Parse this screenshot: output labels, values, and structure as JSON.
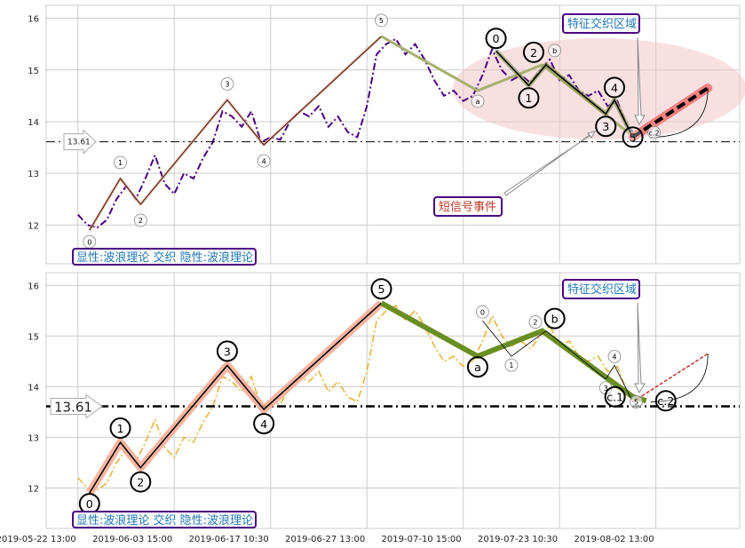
{
  "chart_data": [
    {
      "type": "line",
      "panel": "top",
      "ylim": [
        11.25,
        16.25
      ],
      "xlim": [
        -0.33,
        6.87
      ],
      "yticks": [
        12,
        13,
        14,
        15,
        16
      ],
      "level_line": 13.61,
      "level_label": "13.61",
      "price_color": "#4b0082",
      "legend_text": "显性:波浪理论 交织 隐性:波浪理论",
      "zone_label": "特征交织区域",
      "signal_label": "短信号事件",
      "wave1": {
        "labels": [
          "0",
          "1",
          "2",
          "3",
          "4",
          "5"
        ],
        "x": [
          0.12,
          0.44,
          0.65,
          1.55,
          1.93,
          3.15
        ],
        "y": [
          11.9,
          12.9,
          12.4,
          14.42,
          13.55,
          15.65
        ]
      },
      "wave_abc": {
        "labels": [
          "5",
          "a",
          "b",
          "c.2"
        ],
        "x": [
          3.15,
          4.15,
          4.82,
          5.76
        ],
        "y": [
          15.65,
          14.6,
          15.1,
          13.72
        ]
      },
      "wave2": {
        "labels": [
          "0",
          "1",
          "2",
          "3",
          "4",
          "5"
        ],
        "x": [
          4.34,
          4.68,
          4.86,
          5.48,
          5.57,
          5.76
        ],
        "y": [
          15.37,
          14.7,
          15.1,
          14.15,
          14.42,
          13.7
        ]
      },
      "forecast": {
        "x": [
          5.76,
          6.54
        ],
        "y": [
          13.7,
          14.65
        ]
      }
    },
    {
      "type": "line",
      "panel": "bottom",
      "ylim": [
        11.2,
        16.25
      ],
      "xlim": [
        -0.33,
        6.87
      ],
      "yticks": [
        12,
        13,
        14,
        15,
        16
      ],
      "level_line": 13.61,
      "level_label": "13.61",
      "price_color": "#e8b030",
      "legend_text": "显性:波浪理论 交织 隐性:波浪理论",
      "zone_label": "特征交织区域",
      "wave1": {
        "labels": [
          "0",
          "1",
          "2",
          "3",
          "4",
          "5"
        ],
        "x": [
          0.12,
          0.44,
          0.65,
          1.55,
          1.93,
          3.15
        ],
        "y": [
          11.9,
          12.9,
          12.4,
          14.42,
          13.55,
          15.65
        ]
      },
      "wave_abc": {
        "labels": [
          "5",
          "a",
          "b",
          "c.1",
          "c.2"
        ],
        "x": [
          3.15,
          4.15,
          4.82,
          5.76,
          5.9
        ],
        "y": [
          15.65,
          14.6,
          15.1,
          13.8,
          13.72
        ]
      },
      "wave2": {
        "labels": [
          "0",
          "1",
          "2",
          "3",
          "4",
          "5"
        ],
        "x": [
          4.2,
          4.5,
          4.86,
          5.48,
          5.57,
          5.76
        ],
        "y": [
          15.3,
          14.6,
          15.1,
          14.15,
          14.42,
          13.7
        ]
      },
      "forecast": {
        "x": [
          5.76,
          6.54
        ],
        "y": [
          13.7,
          14.65
        ]
      }
    }
  ],
  "price_series": [
    12.2,
    12.0,
    11.95,
    12.1,
    12.5,
    12.75,
    12.5,
    12.9,
    13.35,
    12.8,
    12.6,
    13.0,
    12.9,
    13.3,
    13.6,
    14.2,
    14.1,
    13.9,
    14.2,
    13.6,
    13.7,
    13.65,
    14.0,
    14.2,
    14.1,
    14.3,
    13.9,
    14.1,
    13.8,
    13.7,
    14.3,
    15.3,
    15.5,
    15.6,
    15.3,
    15.5,
    15.2,
    14.8,
    14.5,
    14.6,
    14.4,
    14.5,
    14.9,
    15.4,
    15.0,
    14.8,
    14.9,
    14.75,
    15.0,
    15.2,
    14.8,
    14.9,
    14.6,
    14.5,
    14.6,
    14.3,
    14.4,
    13.9,
    13.75
  ],
  "x_ticks": [
    "2019-05-22 13:00",
    "2019-06-03 15:00",
    "2019-06-17 10:30",
    "2019-06-27 13:00",
    "2019-07-10 15:00",
    "2019-07-23 10:30",
    "2019-08-02 13:00"
  ]
}
